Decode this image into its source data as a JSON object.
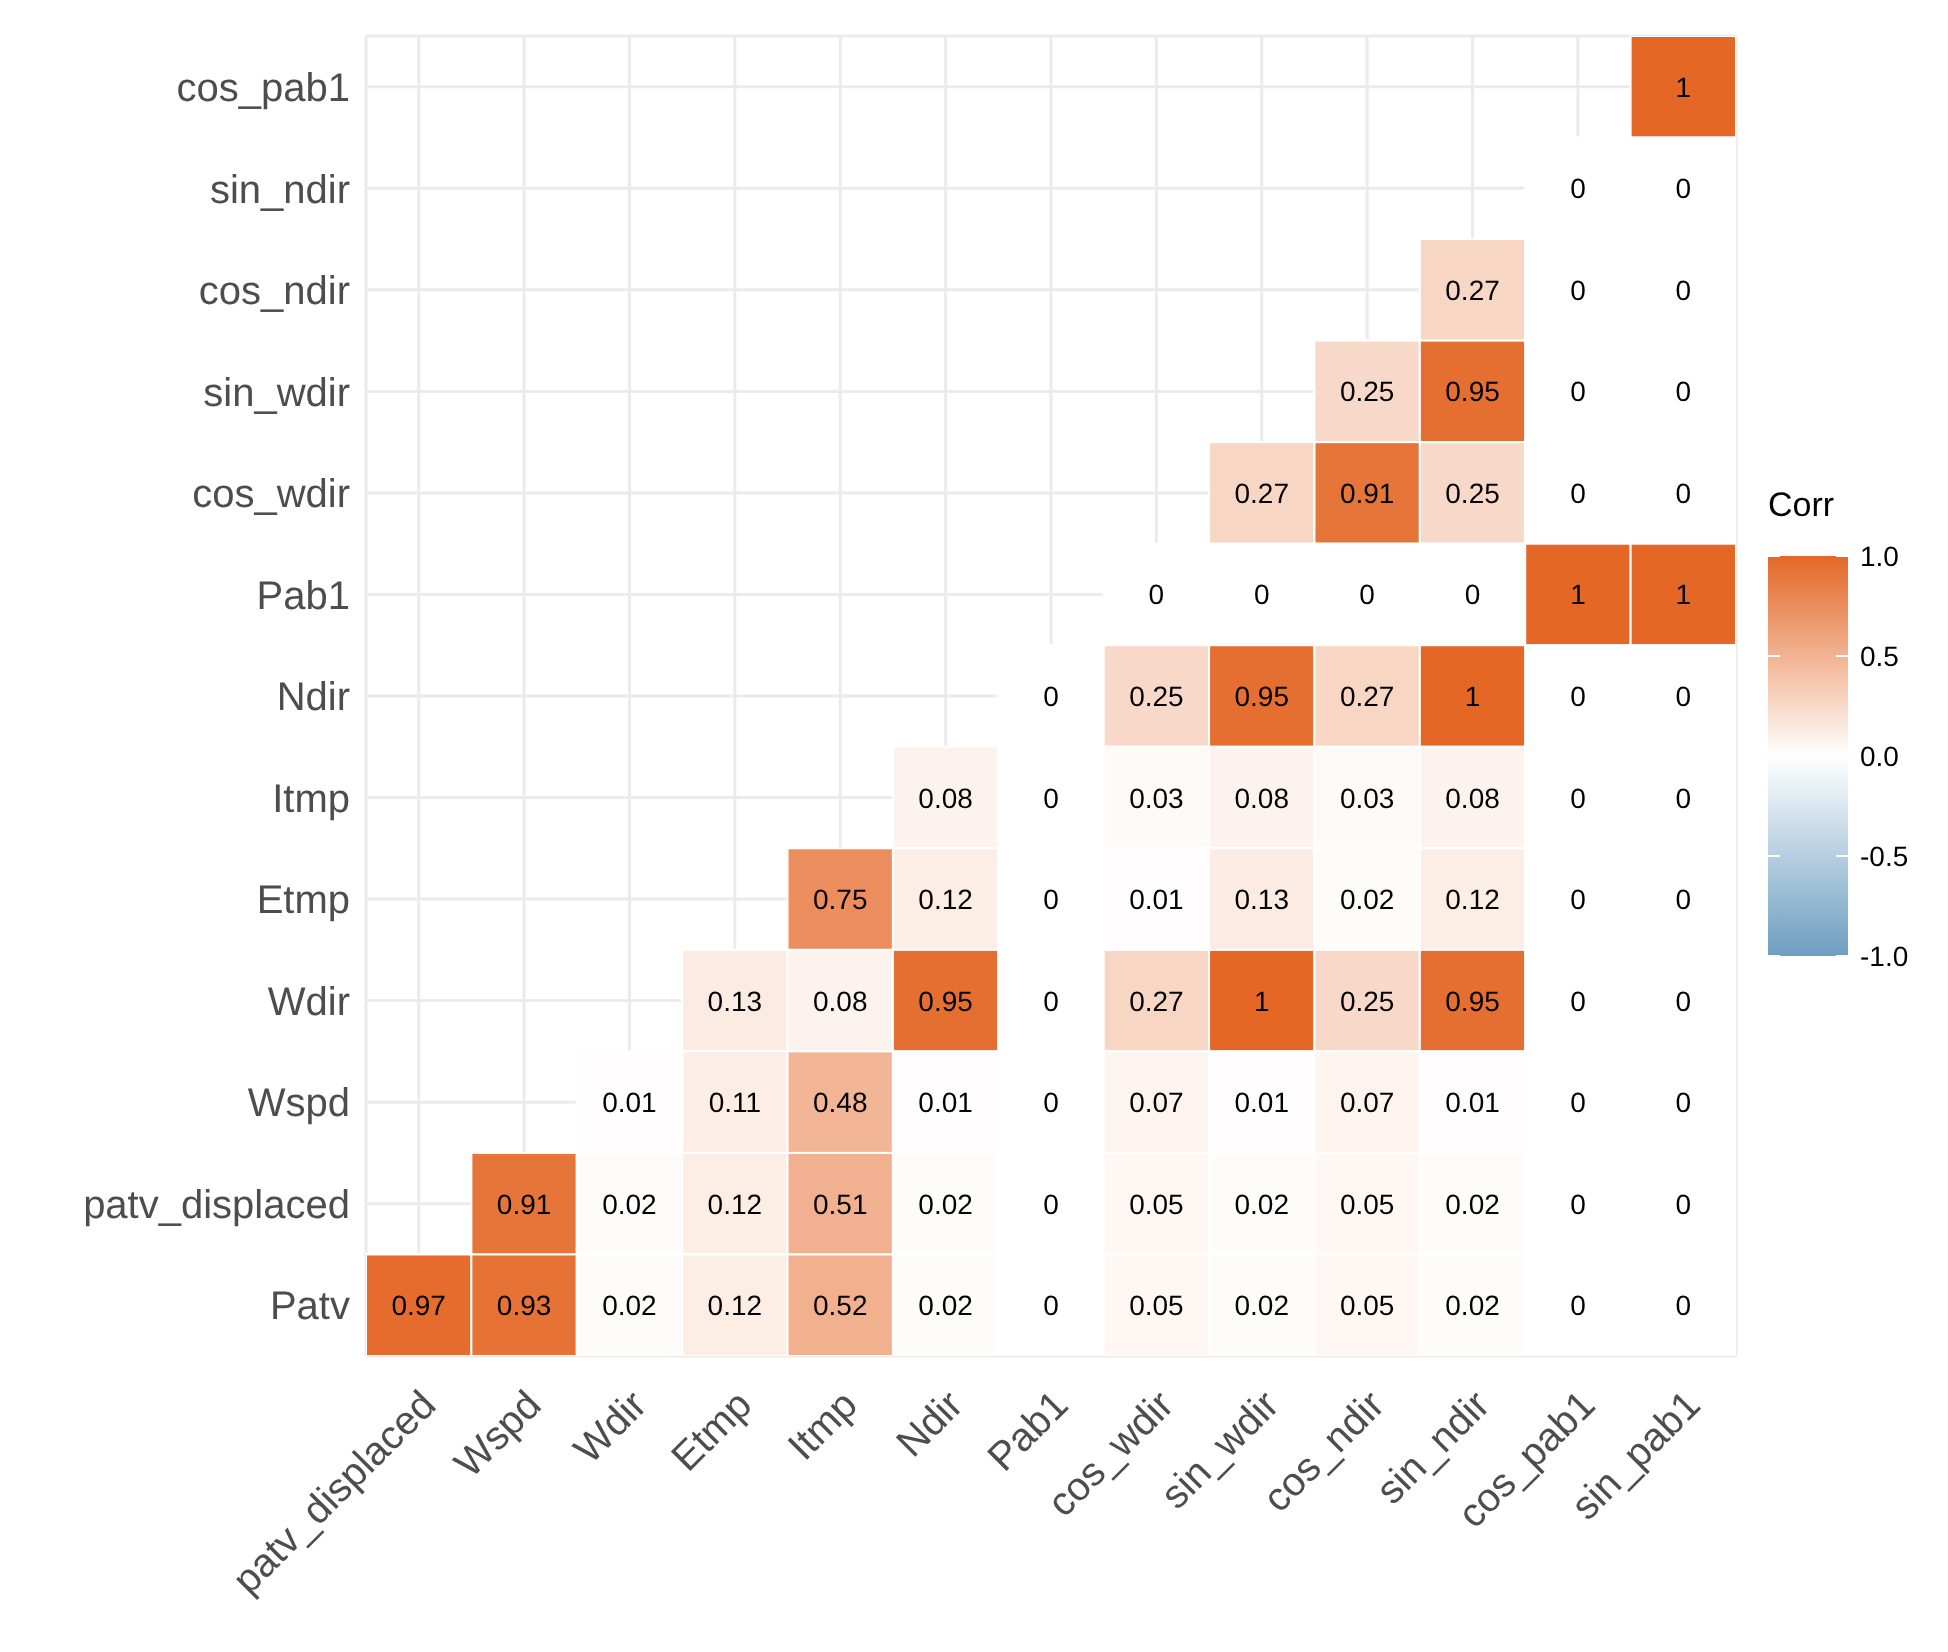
{
  "chart_data": {
    "type": "heatmap",
    "legend_title": "Corr",
    "categories": [
      "patv_displaced",
      "Wspd",
      "Wdir",
      "Etmp",
      "Itmp",
      "Ndir",
      "Pab1",
      "cos_wdir",
      "sin_wdir",
      "cos_ndir",
      "sin_ndir",
      "cos_pab1",
      "sin_pab1"
    ],
    "y_categories": [
      "cos_pab1",
      "sin_ndir",
      "cos_ndir",
      "sin_wdir",
      "cos_wdir",
      "Pab1",
      "Ndir",
      "Itmp",
      "Etmp",
      "Wdir",
      "Wspd",
      "patv_displaced",
      "Patv"
    ],
    "cells": [
      [
        null,
        null,
        null,
        null,
        null,
        null,
        null,
        null,
        null,
        null,
        null,
        null,
        1
      ],
      [
        null,
        null,
        null,
        null,
        null,
        null,
        null,
        null,
        null,
        null,
        null,
        0,
        0
      ],
      [
        null,
        null,
        null,
        null,
        null,
        null,
        null,
        null,
        null,
        null,
        0.27,
        0,
        0
      ],
      [
        null,
        null,
        null,
        null,
        null,
        null,
        null,
        null,
        null,
        0.25,
        0.95,
        0,
        0
      ],
      [
        null,
        null,
        null,
        null,
        null,
        null,
        null,
        null,
        0.27,
        0.91,
        0.25,
        0,
        0
      ],
      [
        null,
        null,
        null,
        null,
        null,
        null,
        null,
        0,
        0,
        0,
        0,
        1,
        1
      ],
      [
        null,
        null,
        null,
        null,
        null,
        null,
        0,
        0.25,
        0.95,
        0.27,
        1,
        0,
        0
      ],
      [
        null,
        null,
        null,
        null,
        null,
        0.08,
        0,
        0.03,
        0.08,
        0.03,
        0.08,
        0,
        0
      ],
      [
        null,
        null,
        null,
        null,
        0.75,
        0.12,
        0,
        0.01,
        0.13,
        0.02,
        0.12,
        0,
        0
      ],
      [
        null,
        null,
        null,
        0.13,
        0.08,
        0.95,
        0,
        0.27,
        1,
        0.25,
        0.95,
        0,
        0
      ],
      [
        null,
        null,
        0.01,
        0.11,
        0.48,
        0.01,
        0,
        0.07,
        0.01,
        0.07,
        0.01,
        0,
        0
      ],
      [
        null,
        0.91,
        0.02,
        0.12,
        0.51,
        0.02,
        0,
        0.05,
        0.02,
        0.05,
        0.02,
        0,
        0
      ],
      [
        0.97,
        0.93,
        0.02,
        0.12,
        0.52,
        0.02,
        0,
        0.05,
        0.02,
        0.05,
        0.02,
        0,
        0
      ]
    ],
    "clim": [
      -1,
      1
    ],
    "cticks": [
      {
        "value": -1,
        "label": "-1.0"
      },
      {
        "value": -0.5,
        "label": "-0.5"
      },
      {
        "value": 0,
        "label": "0.0"
      },
      {
        "value": 0.5,
        "label": "0.5"
      },
      {
        "value": 1,
        "label": "1.0"
      }
    ],
    "colors": [
      "#6d9ec1",
      "#ffffff",
      "#e46726"
    ],
    "data_labels": true,
    "grid": true
  }
}
